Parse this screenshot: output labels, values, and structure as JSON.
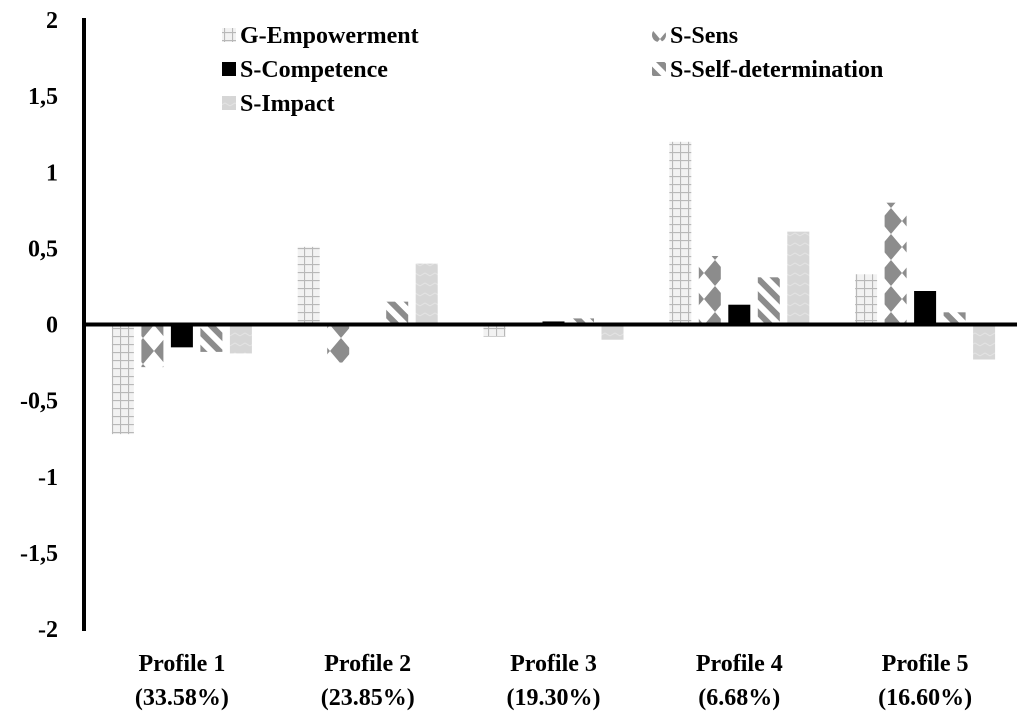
{
  "chart_data": {
    "type": "bar",
    "title": "",
    "xlabel": "",
    "ylabel": "",
    "ylim": [
      -2,
      2
    ],
    "yticks": [
      "2",
      "1,5",
      "1",
      "0,5",
      "0",
      "-0,5",
      "-1",
      "-1,5",
      "-2"
    ],
    "ytick_values": [
      2,
      1.5,
      1,
      0.5,
      0,
      -0.5,
      -1,
      -1.5,
      -2
    ],
    "grid": false,
    "legend_position": "top",
    "categories": [
      [
        "Profile 1",
        "(33.58%)"
      ],
      [
        "Profile 2",
        "(23.85%)"
      ],
      [
        "Profile 3",
        "(19.30%)"
      ],
      [
        "Profile 4",
        "(6.68%)"
      ],
      [
        "Profile 5",
        "(16.60%)"
      ]
    ],
    "series": [
      {
        "name": "G-Empowerment",
        "pattern": "grid",
        "values": [
          -0.72,
          0.51,
          -0.08,
          1.2,
          0.33
        ]
      },
      {
        "name": "S-Sens",
        "pattern": "diamond",
        "values": [
          -0.28,
          -0.25,
          0.01,
          0.45,
          0.8
        ]
      },
      {
        "name": "S-Competence",
        "pattern": "solid",
        "values": [
          -0.15,
          0.01,
          0.02,
          0.13,
          0.22
        ]
      },
      {
        "name": "S-Self-determination",
        "pattern": "diagonal",
        "values": [
          -0.18,
          0.15,
          0.04,
          0.31,
          0.08
        ]
      },
      {
        "name": "S-Impact",
        "pattern": "light",
        "values": [
          -0.19,
          0.4,
          -0.1,
          0.61,
          -0.23
        ]
      }
    ],
    "colors": {
      "grid": "#d9d9d9",
      "diamond": "#8c8c8c",
      "solid": "#000000",
      "diagonal": "#7f7f7f",
      "light": "#d9d9d9"
    }
  }
}
